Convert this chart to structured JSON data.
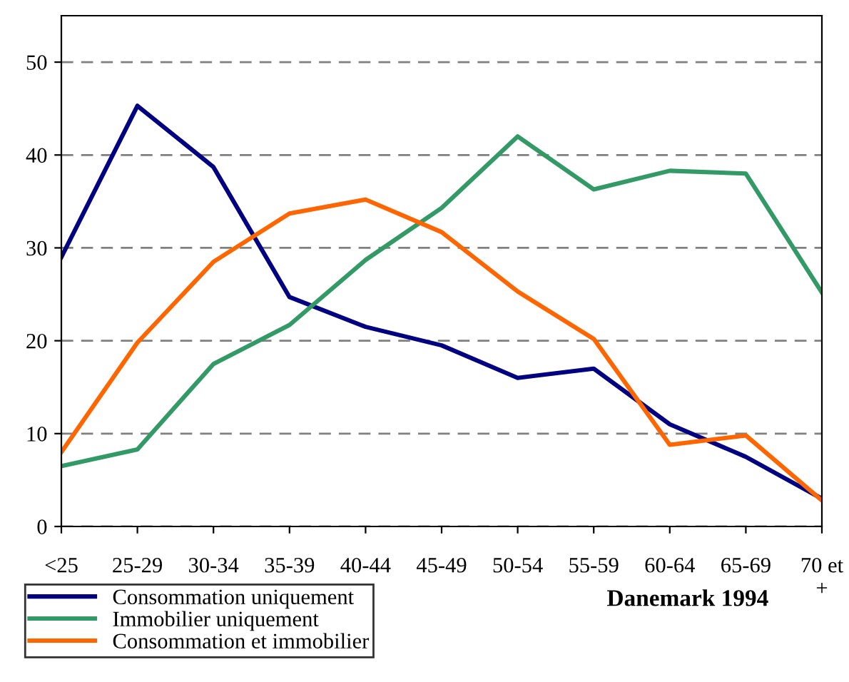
{
  "chart_data": {
    "type": "line",
    "categories": [
      "<25",
      "25-29",
      "30-34",
      "35-39",
      "40-44",
      "45-49",
      "50-54",
      "55-59",
      "60-64",
      "65-69",
      "70 et\n+"
    ],
    "series": [
      {
        "name": "Consommation uniquement",
        "color": "#000080",
        "values": [
          29,
          45.3,
          38.7,
          24.7,
          21.5,
          19.5,
          16,
          17,
          11,
          7.5,
          3
        ]
      },
      {
        "name": "Immobilier uniquement",
        "color": "#339966",
        "values": [
          6.5,
          8.3,
          17.5,
          21.7,
          28.7,
          34.3,
          42,
          36.3,
          38.3,
          38,
          25.2
        ]
      },
      {
        "name": "Consommation et immobilier",
        "color": "#ff6600",
        "values": [
          8,
          19.8,
          28.5,
          33.7,
          35.2,
          31.7,
          25.3,
          20.2,
          8.8,
          9.8,
          2.8
        ]
      }
    ],
    "ylim": [
      0,
      55
    ],
    "yticks": [
      0,
      10,
      20,
      30,
      40,
      50
    ],
    "grid": "y",
    "legend": "bottom",
    "marker": "none",
    "line_style": "solid",
    "annotations": [
      "Danemark 1994"
    ]
  }
}
